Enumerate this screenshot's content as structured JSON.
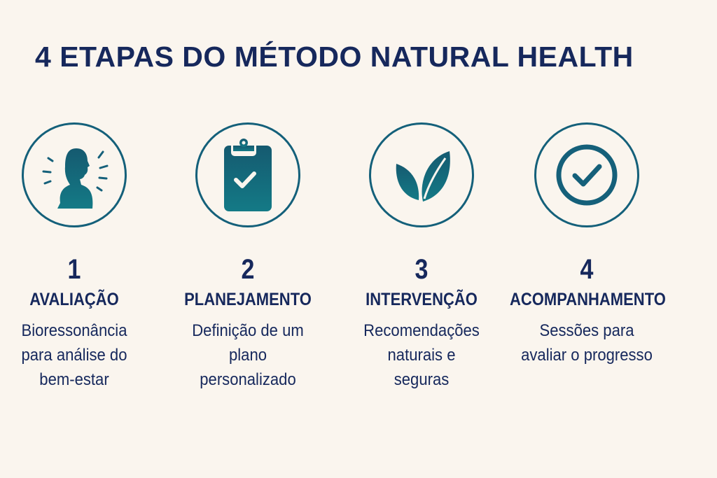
{
  "title": "4 ETAPAS DO MÉTODO NATURAL HEALTH",
  "colors": {
    "background": "#faf5ee",
    "text": "#16285c",
    "icon": "#14607a"
  },
  "steps": [
    {
      "number": "1",
      "heading": "AVALIAÇÃO",
      "description": "Bioressonância\npara análise do\nbem-estar",
      "icon": "woman-profile-icon"
    },
    {
      "number": "2",
      "heading": "PLANEJAMENTO",
      "description": "Definição de um\nplano\npersonalizado",
      "icon": "clipboard-check-icon"
    },
    {
      "number": "3",
      "heading": "INTERVENÇÃO",
      "description": "Recomendações\nnaturais e\nseguras",
      "icon": "leaves-icon"
    },
    {
      "number": "4",
      "heading": "ACOMPANHAMENTO",
      "description": "Sessões para\navaliar o progresso",
      "icon": "check-circle-icon"
    }
  ]
}
